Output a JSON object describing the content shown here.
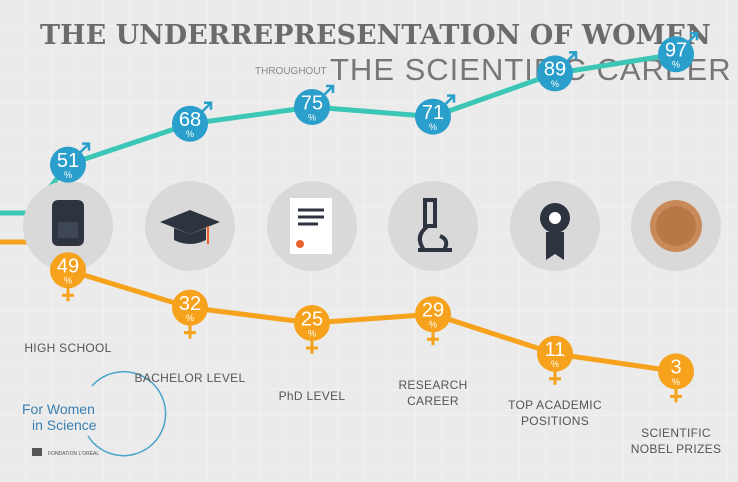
{
  "chart_data": {
    "type": "line",
    "title": "THE UNDERREPRESENTATION OF WOMEN",
    "subtitle_lead": "THROUGHOUT",
    "subtitle": "THE SCIENTIFIC CAREER",
    "categories": [
      "HIGH SCHOOL",
      "BACHELOR LEVEL",
      "PhD LEVEL",
      "RESEARCH CAREER",
      "TOP ACADEMIC POSITIONS",
      "SCIENTIFIC NOBEL PRIZES"
    ],
    "unit": "%",
    "series": [
      {
        "color": "#3cc6b5",
        "marker_color": "#2b9fcb",
        "values": [
          51,
          68,
          75,
          71,
          89,
          97
        ]
      },
      {
        "color": "#f6a21c",
        "marker_color": "#f6a21c",
        "values": [
          49,
          32,
          25,
          29,
          11,
          3
        ]
      }
    ]
  },
  "logo": {
    "line1": "For Women",
    "line2": "in Science",
    "footer": "FONDATION L'ORÉAL"
  }
}
